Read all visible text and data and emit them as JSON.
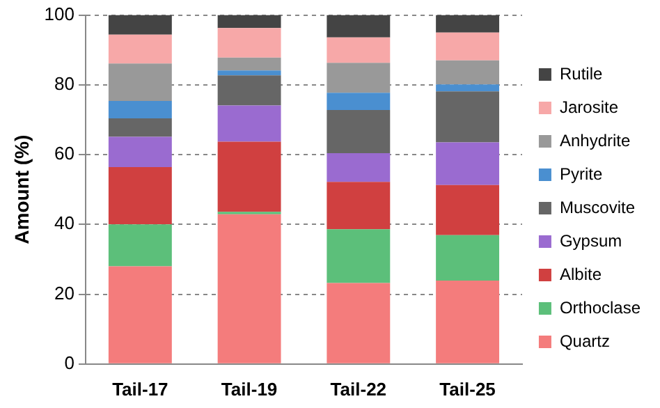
{
  "chart_data": {
    "type": "bar",
    "stacked": true,
    "ylabel": "Amount (%)",
    "categories": [
      "Tail-17",
      "Tail-19",
      "Tail-22",
      "Tail-25"
    ],
    "series": [
      {
        "name": "Quartz",
        "color": "#f47c7c",
        "values": [
          28.0,
          42.9,
          23.2,
          23.9
        ]
      },
      {
        "name": "Orthoclase",
        "color": "#5cbf7a",
        "values": [
          12.0,
          0.7,
          15.4,
          13.0
        ]
      },
      {
        "name": "Albite",
        "color": "#d04040",
        "values": [
          16.4,
          20.1,
          13.6,
          14.4
        ]
      },
      {
        "name": "Gypsum",
        "color": "#9a6bd0",
        "values": [
          8.7,
          10.4,
          8.2,
          12.2
        ]
      },
      {
        "name": "Muscovite",
        "color": "#666666",
        "values": [
          5.3,
          8.6,
          12.4,
          14.6
        ]
      },
      {
        "name": "Pyrite",
        "color": "#4a8fd0",
        "values": [
          5.0,
          1.4,
          4.9,
          2.0
        ]
      },
      {
        "name": "Anhydrite",
        "color": "#999999",
        "values": [
          10.7,
          3.7,
          8.6,
          6.9
        ]
      },
      {
        "name": "Jarosite",
        "color": "#f7a8a8",
        "values": [
          8.3,
          8.5,
          7.3,
          8.0
        ]
      },
      {
        "name": "Rutile",
        "color": "#444444",
        "values": [
          5.6,
          3.7,
          6.4,
          5.0
        ]
      }
    ],
    "ylim": [
      0,
      100
    ],
    "yticks": [
      0,
      20,
      40,
      60,
      80,
      100
    ],
    "grid": "y",
    "legend": "right"
  }
}
